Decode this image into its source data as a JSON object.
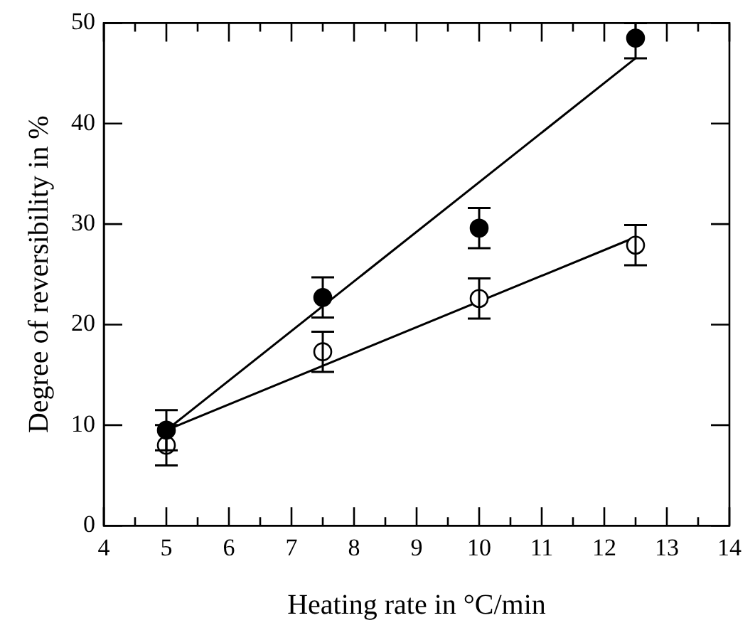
{
  "chart_data": {
    "type": "scatter",
    "xlabel": "Heating rate in °C/min",
    "ylabel": "Degree of reversibility in %",
    "xlim": [
      4,
      14
    ],
    "ylim": [
      0,
      50
    ],
    "xticks": [
      4,
      {
        "value": 4.5,
        "label": null
      },
      5,
      {
        "value": 5.5,
        "label": null
      },
      6,
      {
        "value": 6.5,
        "label": null
      },
      7,
      {
        "value": 7.5,
        "label": null
      },
      8,
      {
        "value": 8.5,
        "label": null
      },
      9,
      {
        "value": 9.5,
        "label": null
      },
      10,
      {
        "value": 10.5,
        "label": null
      },
      11,
      {
        "value": 11.5,
        "label": null
      },
      12,
      {
        "value": 12.5,
        "label": null
      },
      13,
      {
        "value": 13.5,
        "label": null
      },
      14
    ],
    "yticks": [
      0,
      10,
      20,
      30,
      40,
      50
    ],
    "grid": false,
    "legend": false,
    "marker": "circle",
    "series": [
      {
        "color": "#000000",
        "x": [
          5,
          7.5,
          10,
          12.5
        ],
        "values": [
          9.5,
          22.7,
          29.6,
          48.5
        ],
        "errors": [
          2,
          2,
          2,
          [
            46.5,
            50
          ]
        ]
      },
      {
        "color": "#ffffff",
        "x": [
          5,
          7.5,
          10,
          12.5
        ],
        "values": [
          8.0,
          17.3,
          22.6,
          27.9
        ],
        "errors": [
          2,
          2,
          2,
          2
        ]
      },
      {
        "type": "line",
        "color": "#000000",
        "marker": "none",
        "x": [
          5,
          12.5
        ],
        "values": [
          9.5,
          46.5
        ]
      },
      {
        "type": "line",
        "color": "#000000",
        "marker": "none",
        "x": [
          5,
          12.5
        ],
        "values": [
          9.5,
          28.7
        ]
      }
    ]
  }
}
